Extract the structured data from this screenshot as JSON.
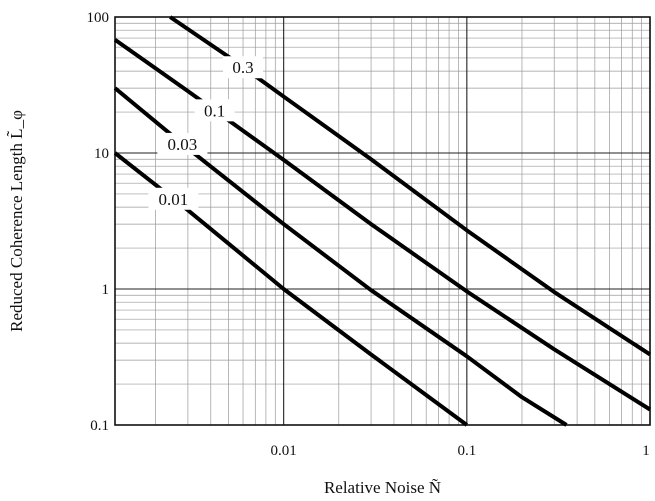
{
  "chart_data": {
    "type": "line",
    "title": "",
    "xlabel": "Relative Noise Ñ",
    "ylabel": "Reduced Coherence Length L̃_φ",
    "xscale": "log",
    "yscale": "log",
    "xlim": [
      0.0012,
      1
    ],
    "ylim": [
      0.1,
      100
    ],
    "x_ticks": [
      0.01,
      0.1,
      1
    ],
    "x_tick_labels": [
      "0.01",
      "0.1",
      "1"
    ],
    "y_ticks": [
      0.1,
      1,
      10,
      100
    ],
    "y_tick_labels": [
      "0.1",
      "1",
      "10",
      "100"
    ],
    "grid": "major and minor (log)",
    "series": [
      {
        "name": "0.3",
        "label_at": 0.006,
        "x": [
          0.0024,
          0.005,
          0.01,
          0.03,
          0.1,
          0.3,
          1
        ],
        "y": [
          100,
          51,
          26,
          9.0,
          2.7,
          0.95,
          0.33
        ]
      },
      {
        "name": "0.1",
        "label_at": 0.0042,
        "x": [
          0.0012,
          0.003,
          0.01,
          0.03,
          0.1,
          0.3,
          1
        ],
        "y": [
          68,
          28.5,
          8.9,
          3.0,
          0.96,
          0.36,
          0.13
        ]
      },
      {
        "name": "0.03",
        "label_at": 0.0028,
        "x": [
          0.0012,
          0.003,
          0.01,
          0.03,
          0.1,
          0.2,
          0.35
        ],
        "y": [
          30,
          10.8,
          3.0,
          0.98,
          0.32,
          0.16,
          0.1
        ]
      },
      {
        "name": "0.01",
        "label_at": 0.0025,
        "x": [
          0.0012,
          0.003,
          0.01,
          0.03,
          0.1
        ],
        "y": [
          10,
          3.8,
          1.0,
          0.33,
          0.1
        ]
      }
    ]
  }
}
